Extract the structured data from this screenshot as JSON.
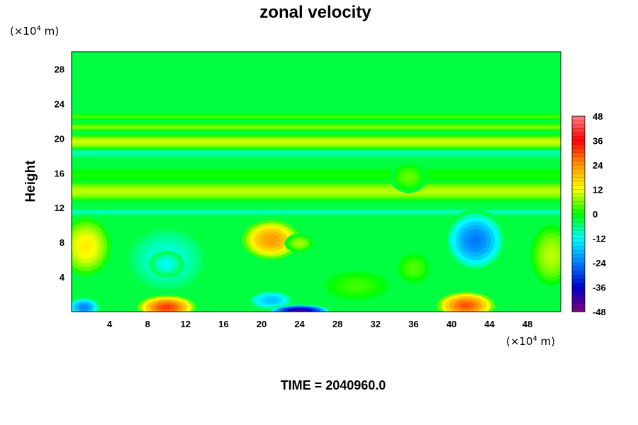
{
  "chart_data": {
    "type": "heatmap",
    "title": "zonal velocity",
    "ylabel": "Height",
    "y_units": "(×10",
    "x_units": "(×10",
    "units_exponent": "4",
    "units_suffix": " m)",
    "time_label": "TIME = 2040960.0",
    "xlim": [
      0,
      51.5
    ],
    "ylim": [
      0,
      30
    ],
    "x_ticks": [
      4,
      8,
      12,
      16,
      20,
      24,
      28,
      32,
      36,
      40,
      44,
      48
    ],
    "x_tick_labels": [
      "4",
      "8",
      "12",
      "16",
      "20",
      "24",
      "28",
      "32",
      "36",
      "40",
      "44",
      "48"
    ],
    "y_ticks": [
      4,
      8,
      12,
      16,
      20,
      24,
      28
    ],
    "y_tick_labels": [
      "4",
      "8",
      "12",
      "16",
      "20",
      "24",
      "28"
    ],
    "colorbar": {
      "range": [
        -48,
        48
      ],
      "ticks": [
        48,
        36,
        24,
        12,
        0,
        -12,
        -24,
        -36,
        -48
      ],
      "tick_labels": [
        "48",
        "36",
        "24",
        "12",
        "0",
        "-12",
        "-24",
        "-36",
        "-48"
      ],
      "colors": [
        "#ff8080",
        "#ff0000",
        "#ff9900",
        "#ffff00",
        "#00ff00",
        "#00ffff",
        "#0080ff",
        "#0000cc",
        "#800080"
      ]
    },
    "background_value": -3,
    "bands": [
      {
        "y": 11.5,
        "width": 0.4,
        "value": -9
      },
      {
        "y": 13.9,
        "width": 1.2,
        "value": 9
      },
      {
        "y": 15.8,
        "width": 0.8,
        "value": 1
      },
      {
        "y": 18.3,
        "width": 0.6,
        "value": -8
      },
      {
        "y": 19.6,
        "width": 0.9,
        "value": 10
      },
      {
        "y": 21.3,
        "width": 0.5,
        "value": 6
      },
      {
        "y": 22.5,
        "width": 0.4,
        "value": 3
      }
    ],
    "features": [
      {
        "x": 21.0,
        "y": 8.3,
        "rx": 3.5,
        "ry": 2.6,
        "value": 24
      },
      {
        "x": 24.0,
        "y": 7.9,
        "rx": 1.6,
        "ry": 1.1,
        "value": 8
      },
      {
        "x": 10.0,
        "y": 0.5,
        "rx": 3.5,
        "ry": 1.6,
        "value": 32
      },
      {
        "x": 41.5,
        "y": 0.7,
        "rx": 3.5,
        "ry": 1.8,
        "value": 30
      },
      {
        "x": 1.5,
        "y": 7.5,
        "rx": 3.0,
        "ry": 3.8,
        "value": 14
      },
      {
        "x": 50.5,
        "y": 6.5,
        "rx": 2.5,
        "ry": 4.0,
        "value": 9
      },
      {
        "x": 42.5,
        "y": 8.2,
        "rx": 3.3,
        "ry": 3.6,
        "value": -25
      },
      {
        "x": 10.0,
        "y": 6.0,
        "rx": 4.5,
        "ry": 4.0,
        "value": -11
      },
      {
        "x": 10.0,
        "y": 5.5,
        "rx": 1.8,
        "ry": 1.5,
        "value": -12
      },
      {
        "x": 21.0,
        "y": 1.3,
        "rx": 2.5,
        "ry": 1.2,
        "value": -18
      },
      {
        "x": 24.0,
        "y": 0.1,
        "rx": 3.5,
        "ry": 0.8,
        "value": -42
      },
      {
        "x": 1.3,
        "y": 0.5,
        "rx": 1.8,
        "ry": 1.2,
        "value": -24
      },
      {
        "x": 36.0,
        "y": 5.0,
        "rx": 2.0,
        "ry": 2.0,
        "value": 4
      },
      {
        "x": 30.0,
        "y": 3.0,
        "rx": 4.0,
        "ry": 2.0,
        "value": 3
      },
      {
        "x": 35.5,
        "y": 15.5,
        "rx": 2.0,
        "ry": 1.8,
        "value": 5
      }
    ]
  }
}
